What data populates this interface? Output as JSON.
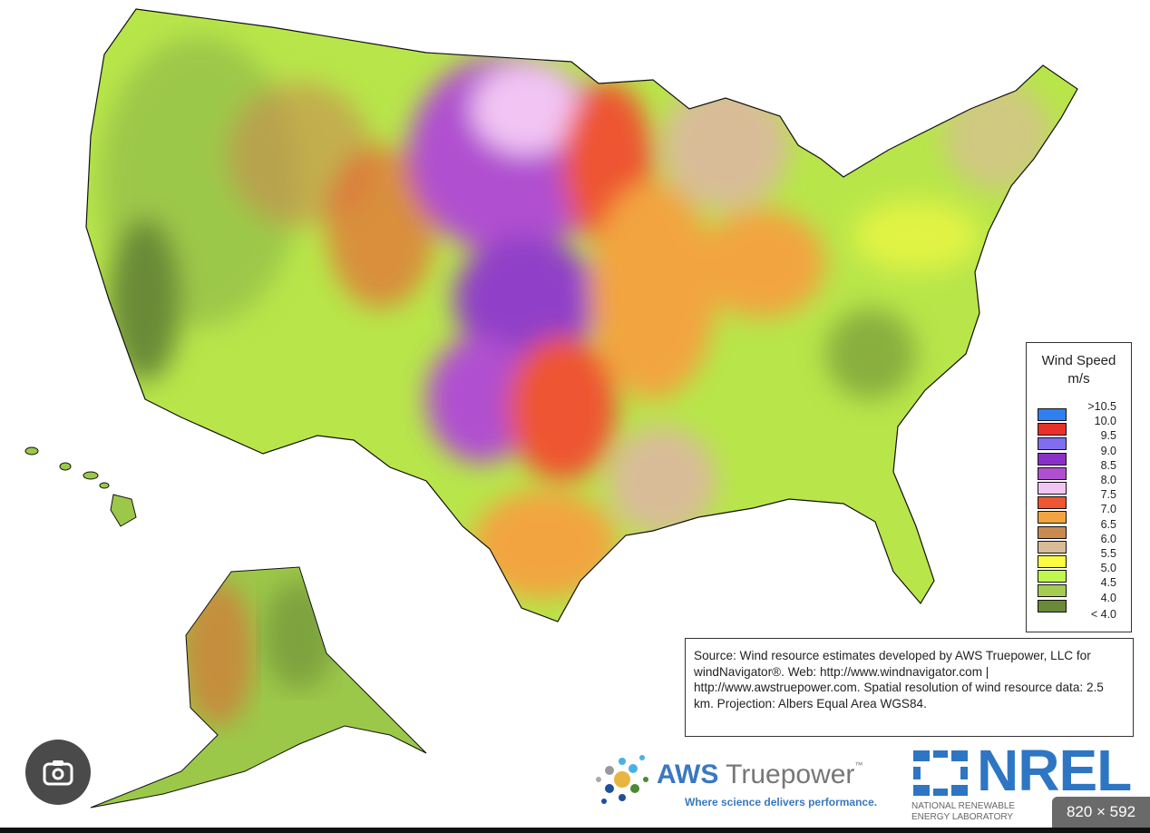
{
  "legend": {
    "title": "Wind Speed",
    "unit": "m/s",
    "items": [
      {
        "label": ">10.5",
        "color": "#2f7ff0"
      },
      {
        "label": "10.0",
        "color": "#e8302a"
      },
      {
        "label": "9.5",
        "color": "#7f6ff0"
      },
      {
        "label": "9.0",
        "color": "#8a30c8"
      },
      {
        "label": "8.5",
        "color": "#b050d0"
      },
      {
        "label": "8.0",
        "color": "#f2c4f4"
      },
      {
        "label": "7.5",
        "color": "#ee5530"
      },
      {
        "label": "7.0",
        "color": "#f2a440"
      },
      {
        "label": "6.5",
        "color": "#c98a50"
      },
      {
        "label": "6.0",
        "color": "#d8bc98"
      },
      {
        "label": "5.5",
        "color": "#fbfb40"
      },
      {
        "label": "5.0",
        "color": "#c0f850"
      },
      {
        "label": "4.5",
        "color": "#a4cc50"
      },
      {
        "label": "4.0",
        "color": "#6a8a38"
      }
    ],
    "last_label": "< 4.0"
  },
  "source": "Source: Wind resource estimates developed by AWS Truepower, LLC for windNavigator®. Web: http://www.windnavigator.com | http://www.awstruepower.com. Spatial resolution of wind resource data: 2.5 km. Projection: Albers Equal Area WGS84.",
  "logos": {
    "aws": {
      "name_bold": "AWS",
      "name": "Truepower",
      "tm": "™",
      "tagline": "Where science delivers performance."
    },
    "nrel": {
      "name": "NREL",
      "sub": "NATIONAL RENEWABLE ENERGY LABORATORY"
    }
  },
  "overlay": {
    "lens_icon": "google-lens-icon",
    "dimensions": "820 × 592"
  }
}
